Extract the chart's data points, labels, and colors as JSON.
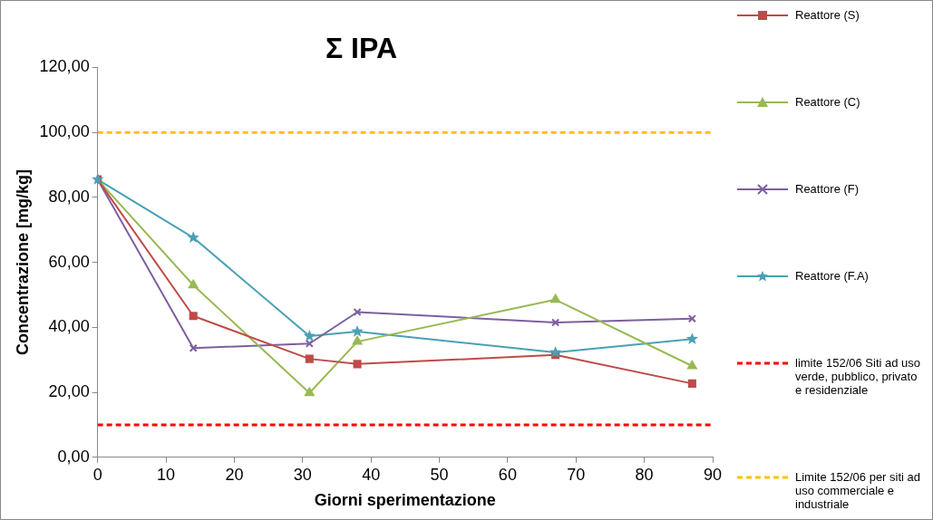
{
  "chart_data": {
    "type": "line",
    "title": "Σ IPA",
    "xlabel": "Giorni sperimentazione",
    "ylabel": "Concentrazione [mg/kg]",
    "x": [
      0,
      14,
      31,
      38,
      67,
      87
    ],
    "series": [
      {
        "name": "Reattore (S)",
        "color": "#be4b48",
        "marker": "square",
        "values": [
          85.5,
          43.5,
          30.3,
          28.7,
          31.5,
          22.7
        ]
      },
      {
        "name": "Reattore (C)",
        "color": "#98b954",
        "marker": "triangle",
        "values": [
          85.5,
          53,
          19.8,
          35.6,
          48.5,
          28.1
        ]
      },
      {
        "name": "Reattore (F)",
        "color": "#7d5fa0",
        "marker": "cross",
        "values": [
          85.5,
          33.6,
          35,
          44.7,
          41.5,
          42.7
        ]
      },
      {
        "name": "Reattore (F.A)",
        "color": "#4aa0b5",
        "marker": "star",
        "values": [
          85.5,
          67.6,
          37.3,
          38.7,
          32.3,
          36.4
        ]
      }
    ],
    "ref_lines": [
      {
        "axis": "y",
        "value": 10,
        "label": "limite 152/06 Siti ad uso verde, pubblico, privato e residenziale",
        "color": "#ff0000",
        "line_style": "dashed"
      },
      {
        "axis": "y",
        "value": 100,
        "label": "Limite 152/06 per siti ad uso commerciale e industriale",
        "color": "#ffc000",
        "line_style": "dashed"
      }
    ],
    "xlim": [
      0,
      90
    ],
    "xticks": [
      0,
      10,
      20,
      30,
      40,
      50,
      60,
      70,
      80,
      90
    ],
    "ylim": [
      0,
      120
    ],
    "yticks": [
      {
        "value": 0,
        "label": "0,00"
      },
      {
        "value": 20,
        "label": "20,00"
      },
      {
        "value": 40,
        "label": "40,00"
      },
      {
        "value": 60,
        "label": "60,00"
      },
      {
        "value": 80,
        "label": "80,00"
      },
      {
        "value": 100,
        "label": "100,00"
      },
      {
        "value": 120,
        "label": "120,00"
      }
    ],
    "grid": false,
    "legend": "right",
    "line_style": "solid"
  }
}
